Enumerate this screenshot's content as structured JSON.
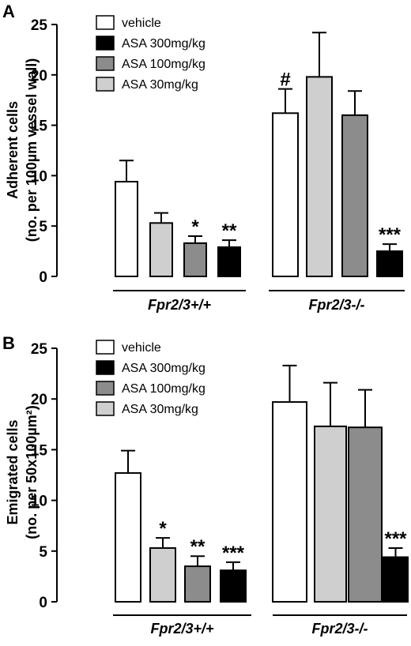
{
  "chart_data": [
    {
      "type": "bar",
      "panel": "A",
      "ylabel_lines": [
        "Adherent cells",
        "(no. per 100µm vessel wall)"
      ],
      "ylim": [
        0,
        25
      ],
      "yticks": [
        "0",
        "5",
        "10",
        "15",
        "20",
        "25"
      ],
      "legend": [
        "vehicle",
        "ASA 300mg/kg",
        "ASA 100mg/kg",
        "ASA 30mg/kg"
      ],
      "groups": [
        "Fpr2/3+/+",
        "Fpr2/3-/-"
      ],
      "bars": [
        {
          "group": 0,
          "treatment": "vehicle",
          "value": 9.4,
          "err": 2.1,
          "sig": ""
        },
        {
          "group": 0,
          "treatment": "ASA 30mg/kg",
          "value": 5.3,
          "err": 1.0,
          "sig": ""
        },
        {
          "group": 0,
          "treatment": "ASA 100mg/kg",
          "value": 3.3,
          "err": 0.7,
          "sig": "*"
        },
        {
          "group": 0,
          "treatment": "ASA 300mg/kg",
          "value": 2.9,
          "err": 0.7,
          "sig": "**"
        },
        {
          "group": 1,
          "treatment": "vehicle",
          "value": 16.2,
          "err": 2.4,
          "sig": "#"
        },
        {
          "group": 1,
          "treatment": "ASA 30mg/kg",
          "value": 19.8,
          "err": 4.4,
          "sig": ""
        },
        {
          "group": 1,
          "treatment": "ASA 100mg/kg",
          "value": 16.0,
          "err": 2.4,
          "sig": ""
        },
        {
          "group": 1,
          "treatment": "ASA 300mg/kg",
          "value": 2.5,
          "err": 0.7,
          "sig": "***"
        }
      ]
    },
    {
      "type": "bar",
      "panel": "B",
      "ylabel_lines": [
        "Emigrated cells",
        "(no. per 50x100µm²)"
      ],
      "ylim": [
        0,
        25
      ],
      "yticks": [
        "0",
        "5",
        "10",
        "15",
        "20",
        "25"
      ],
      "legend": [
        "vehicle",
        "ASA 300mg/kg",
        "ASA 100mg/kg",
        "ASA 30mg/kg"
      ],
      "groups": [
        "Fpr2/3+/+",
        "Fpr2/3-/-"
      ],
      "bars": [
        {
          "group": 0,
          "treatment": "vehicle",
          "value": 12.7,
          "err": 2.2,
          "sig": ""
        },
        {
          "group": 0,
          "treatment": "ASA 30mg/kg",
          "value": 5.3,
          "err": 1.0,
          "sig": "*"
        },
        {
          "group": 0,
          "treatment": "ASA 100mg/kg",
          "value": 3.5,
          "err": 1.0,
          "sig": "**"
        },
        {
          "group": 0,
          "treatment": "ASA 300mg/kg",
          "value": 3.1,
          "err": 0.8,
          "sig": "***"
        },
        {
          "group": 1,
          "treatment": "vehicle",
          "value": 19.7,
          "err": 3.6,
          "sig": ""
        },
        {
          "group": 1,
          "treatment": "ASA 30mg/kg",
          "value": 17.3,
          "err": 4.3,
          "sig": ""
        },
        {
          "group": 1,
          "treatment": "ASA 100mg/kg",
          "value": 17.2,
          "err": 3.7,
          "sig": ""
        },
        {
          "group": 1,
          "treatment": "ASA 300mg/kg",
          "value": 4.4,
          "err": 0.9,
          "sig": "***"
        }
      ]
    }
  ],
  "colors": {
    "vehicle": "#ffffff",
    "ASA 300mg/kg": "#000000",
    "ASA 100mg/kg": "#8c8c8c",
    "ASA 30mg/kg": "#cfcfcf"
  }
}
